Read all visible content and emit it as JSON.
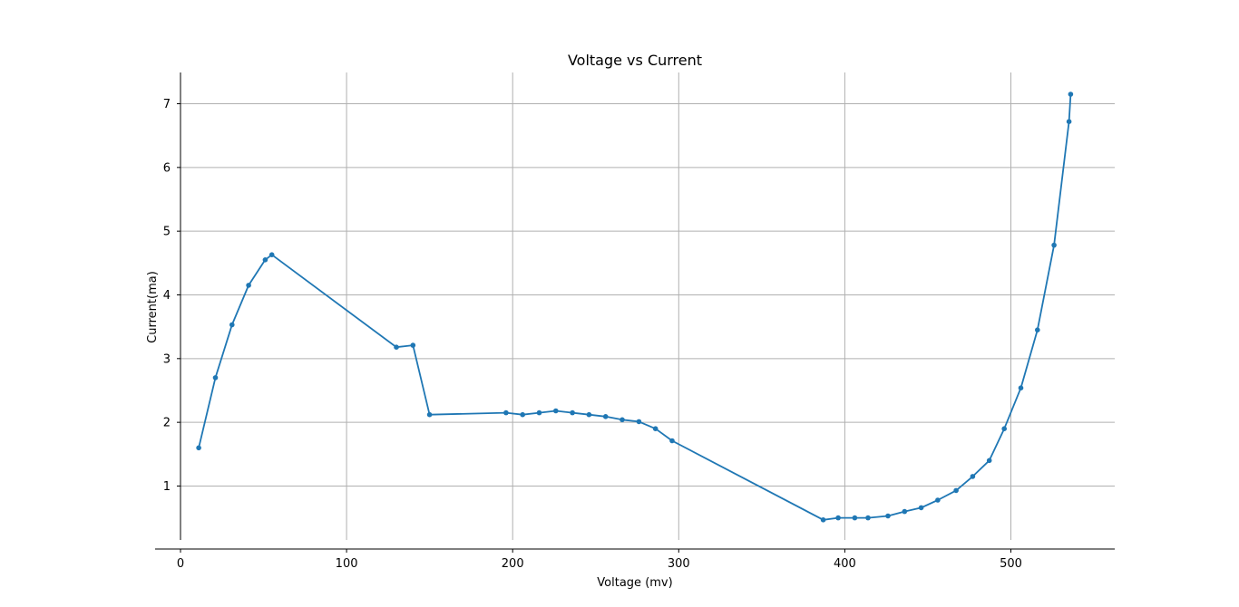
{
  "chart_data": {
    "type": "line",
    "title": "Voltage vs Current",
    "xlabel": "Voltage (mv)",
    "ylabel": "Current(ma)",
    "xlim": [
      0,
      560
    ],
    "ylim": [
      0.2,
      7.5
    ],
    "x_ticks": [
      0,
      100,
      200,
      300,
      400,
      500
    ],
    "y_ticks": [
      1,
      2,
      3,
      4,
      5,
      6,
      7
    ],
    "grid": true,
    "legend": "none",
    "series_color": "#1f77b4",
    "series": [
      {
        "x": [
          11,
          21,
          31,
          41,
          51,
          55,
          130,
          140,
          150,
          196,
          206,
          216,
          226,
          236,
          246,
          256,
          266,
          276,
          286,
          296,
          387,
          396,
          406,
          414,
          426,
          436,
          446,
          456,
          467,
          477,
          487,
          496,
          506,
          516,
          526,
          535,
          536
        ],
        "y": [
          1.6,
          2.7,
          3.53,
          4.15,
          4.55,
          4.63,
          3.18,
          3.21,
          2.12,
          2.15,
          2.12,
          2.15,
          2.18,
          2.15,
          2.12,
          2.09,
          2.04,
          2.01,
          1.9,
          1.71,
          0.47,
          0.5,
          0.5,
          0.5,
          0.53,
          0.6,
          0.66,
          0.78,
          0.93,
          1.15,
          1.4,
          1.9,
          2.54,
          3.45,
          4.78,
          6.72,
          7.15
        ]
      }
    ]
  }
}
